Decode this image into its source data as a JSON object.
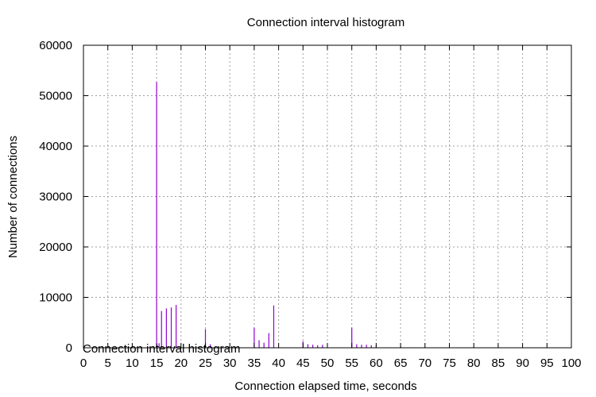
{
  "chart_data": {
    "type": "bar",
    "title": "Connection interval histogram",
    "xlabel": "Connection elapsed time, seconds",
    "ylabel": "Number of connections",
    "legend_label": "Connection interval histogram",
    "legend_position": "bottom-left",
    "grid": true,
    "series_color": "#9400d3",
    "xlim": [
      0,
      100
    ],
    "ylim": [
      0,
      60000
    ],
    "xticks": [
      "0",
      "5",
      "10",
      "15",
      "20",
      "25",
      "30",
      "35",
      "40",
      "45",
      "50",
      "55",
      "60",
      "65",
      "70",
      "75",
      "80",
      "85",
      "90",
      "95",
      "100"
    ],
    "yticks": [
      "0",
      "10000",
      "20000",
      "30000",
      "40000",
      "50000",
      "60000"
    ],
    "x": [
      15,
      15.5,
      16,
      17,
      18,
      19,
      25,
      26,
      35,
      36,
      37,
      38,
      39,
      45,
      46,
      47,
      48,
      49,
      55,
      56,
      57,
      58,
      59,
      60,
      65
    ],
    "values": [
      52700,
      900,
      7300,
      7800,
      8000,
      8500,
      3700,
      700,
      4000,
      1500,
      1000,
      2900,
      8400,
      1300,
      700,
      600,
      500,
      600,
      4000,
      700,
      600,
      600,
      500,
      500,
      300
    ]
  }
}
